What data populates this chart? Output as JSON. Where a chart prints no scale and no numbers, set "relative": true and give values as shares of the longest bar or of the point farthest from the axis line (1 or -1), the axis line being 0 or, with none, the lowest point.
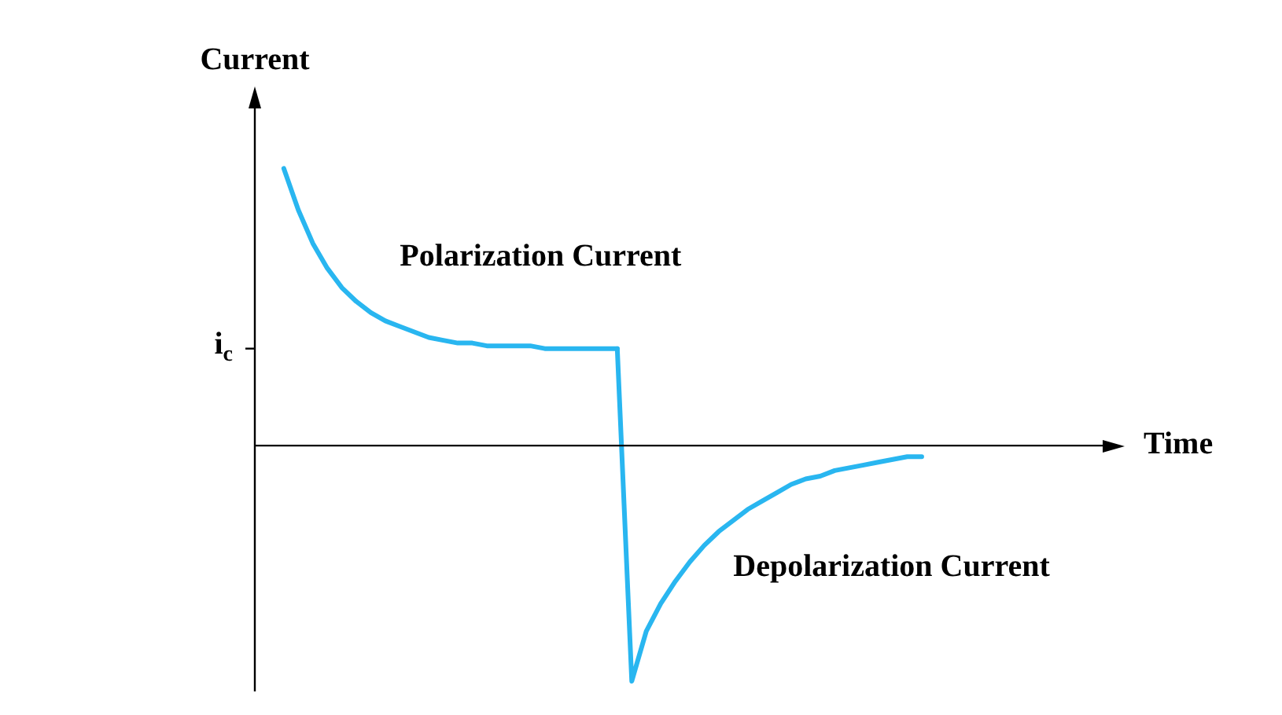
{
  "chart_data": {
    "type": "line",
    "relative": true,
    "xlabel": "Time",
    "ylabel": "Current",
    "legend": false,
    "marker": "none",
    "line_style": "solid",
    "categories": [
      null,
      null,
      null,
      null,
      null,
      null,
      null,
      null,
      null,
      null,
      null,
      null,
      null,
      null,
      null,
      null,
      null,
      null,
      null,
      null,
      null,
      null,
      null,
      null,
      null,
      null,
      null,
      null,
      null,
      null,
      null,
      null,
      null,
      null,
      null,
      null,
      null,
      null,
      null,
      null,
      null,
      null,
      null,
      null,
      null,
      null,
      null,
      null,
      null,
      null,
      null,
      null,
      null,
      null,
      null,
      null,
      null,
      null,
      null,
      null,
      null
    ],
    "annotations": [
      "i$_{c}$"
    ],
    "series": [
      {
        "name": "Polarization Current",
        "color": "#29b6f0",
        "values": [
          null,
          null,
          1.0,
          0.85,
          0.73,
          0.64,
          0.57,
          0.52,
          0.48,
          0.45,
          0.43,
          0.41,
          0.39,
          0.38,
          0.37,
          0.37,
          0.36,
          0.36,
          0.36,
          0.36,
          0.35,
          0.35,
          0.35,
          0.35,
          0.35,
          0.35,
          null,
          null,
          null,
          null,
          null,
          null,
          null,
          null,
          null,
          null,
          null,
          null,
          null,
          null,
          null,
          null,
          null,
          null,
          null,
          null,
          null,
          null,
          null,
          null,
          null,
          null,
          null,
          null,
          null,
          null,
          null,
          null,
          null,
          null,
          null
        ]
      },
      {
        "name": "Depolarization Current",
        "color": "#29b6f0",
        "values": [
          null,
          null,
          null,
          null,
          null,
          null,
          null,
          null,
          null,
          null,
          null,
          null,
          null,
          null,
          null,
          null,
          null,
          null,
          null,
          null,
          null,
          null,
          null,
          null,
          null,
          0.35,
          -0.85,
          -0.67,
          -0.57,
          -0.49,
          -0.42,
          -0.36,
          -0.31,
          -0.27,
          -0.23,
          -0.2,
          -0.17,
          -0.14,
          -0.12,
          -0.11,
          -0.09,
          -0.08,
          -0.07,
          -0.06,
          -0.05,
          -0.04,
          -0.04,
          null,
          null,
          null,
          null,
          null,
          null,
          null,
          null,
          null,
          null,
          null,
          null,
          null,
          null
        ]
      }
    ]
  }
}
